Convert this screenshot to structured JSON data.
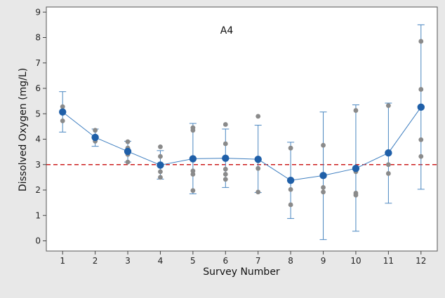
{
  "chart_data": {
    "type": "scatter",
    "title": "A4",
    "xlabel": "Survey Number",
    "ylabel": "Dissolved Oxygen (mg/L)",
    "xlim": [
      0.5,
      12.5
    ],
    "ylim": [
      -0.4,
      9.2
    ],
    "x_ticks": [
      1,
      2,
      3,
      4,
      5,
      6,
      7,
      8,
      9,
      10,
      11,
      12
    ],
    "y_ticks": [
      0,
      1,
      2,
      3,
      4,
      5,
      6,
      7,
      8,
      9
    ],
    "reference_line": {
      "y": 3.0,
      "color": "#cc1f1f",
      "style": "dashed"
    },
    "colors": {
      "mean": "#1f5fa8",
      "line": "#3f7fc0",
      "individual": "#8a8a8a",
      "errorbar": "#4a86c0"
    },
    "means": [
      {
        "x": 1,
        "y": 5.07
      },
      {
        "x": 2,
        "y": 4.07
      },
      {
        "x": 3,
        "y": 3.52
      },
      {
        "x": 4,
        "y": 2.98
      },
      {
        "x": 5,
        "y": 3.23
      },
      {
        "x": 6,
        "y": 3.25
      },
      {
        "x": 7,
        "y": 3.21
      },
      {
        "x": 8,
        "y": 2.38
      },
      {
        "x": 9,
        "y": 2.57
      },
      {
        "x": 10,
        "y": 2.85
      },
      {
        "x": 11,
        "y": 3.46
      },
      {
        "x": 12,
        "y": 5.26
      }
    ],
    "error_bars": [
      {
        "x": 1,
        "low": 4.28,
        "high": 5.87
      },
      {
        "x": 2,
        "low": 3.72,
        "high": 4.4
      },
      {
        "x": 3,
        "low": 3.1,
        "high": 3.92
      },
      {
        "x": 4,
        "low": 2.43,
        "high": 3.55
      },
      {
        "x": 5,
        "low": 1.85,
        "high": 4.62
      },
      {
        "x": 6,
        "low": 2.1,
        "high": 4.4
      },
      {
        "x": 7,
        "low": 1.9,
        "high": 4.55
      },
      {
        "x": 8,
        "low": 0.88,
        "high": 3.88
      },
      {
        "x": 9,
        "low": 0.05,
        "high": 5.07
      },
      {
        "x": 10,
        "low": 0.38,
        "high": 5.35
      },
      {
        "x": 11,
        "low": 1.48,
        "high": 5.42
      },
      {
        "x": 12,
        "low": 2.03,
        "high": 8.5
      }
    ],
    "individual_values": [
      {
        "x": 1,
        "y": 5.28
      },
      {
        "x": 1,
        "y": 5.05
      },
      {
        "x": 1,
        "y": 4.72
      },
      {
        "x": 2,
        "y": 4.35
      },
      {
        "x": 2,
        "y": 4.1
      },
      {
        "x": 2,
        "y": 3.92
      },
      {
        "x": 3,
        "y": 3.9
      },
      {
        "x": 3,
        "y": 3.65
      },
      {
        "x": 3,
        "y": 3.4
      },
      {
        "x": 3,
        "y": 3.1
      },
      {
        "x": 4,
        "y": 3.7
      },
      {
        "x": 4,
        "y": 3.32
      },
      {
        "x": 4,
        "y": 2.72
      },
      {
        "x": 4,
        "y": 2.5
      },
      {
        "x": 5,
        "y": 4.45
      },
      {
        "x": 5,
        "y": 4.35
      },
      {
        "x": 5,
        "y": 2.75
      },
      {
        "x": 5,
        "y": 2.62
      },
      {
        "x": 5,
        "y": 1.98
      },
      {
        "x": 6,
        "y": 4.58
      },
      {
        "x": 6,
        "y": 3.82
      },
      {
        "x": 6,
        "y": 2.82
      },
      {
        "x": 6,
        "y": 2.62
      },
      {
        "x": 6,
        "y": 2.42
      },
      {
        "x": 7,
        "y": 4.9
      },
      {
        "x": 7,
        "y": 3.15
      },
      {
        "x": 7,
        "y": 2.85
      },
      {
        "x": 7,
        "y": 1.92
      },
      {
        "x": 8,
        "y": 3.65
      },
      {
        "x": 8,
        "y": 2.02
      },
      {
        "x": 8,
        "y": 1.42
      },
      {
        "x": 9,
        "y": 3.76
      },
      {
        "x": 9,
        "y": 2.1
      },
      {
        "x": 9,
        "y": 1.92
      },
      {
        "x": 10,
        "y": 5.13
      },
      {
        "x": 10,
        "y": 2.88
      },
      {
        "x": 10,
        "y": 2.72
      },
      {
        "x": 10,
        "y": 1.88
      },
      {
        "x": 10,
        "y": 1.8
      },
      {
        "x": 11,
        "y": 5.32
      },
      {
        "x": 11,
        "y": 3.0
      },
      {
        "x": 11,
        "y": 2.65
      },
      {
        "x": 12,
        "y": 7.85
      },
      {
        "x": 12,
        "y": 5.96
      },
      {
        "x": 12,
        "y": 3.98
      },
      {
        "x": 12,
        "y": 3.32
      }
    ],
    "grid": false,
    "legend": "none"
  }
}
